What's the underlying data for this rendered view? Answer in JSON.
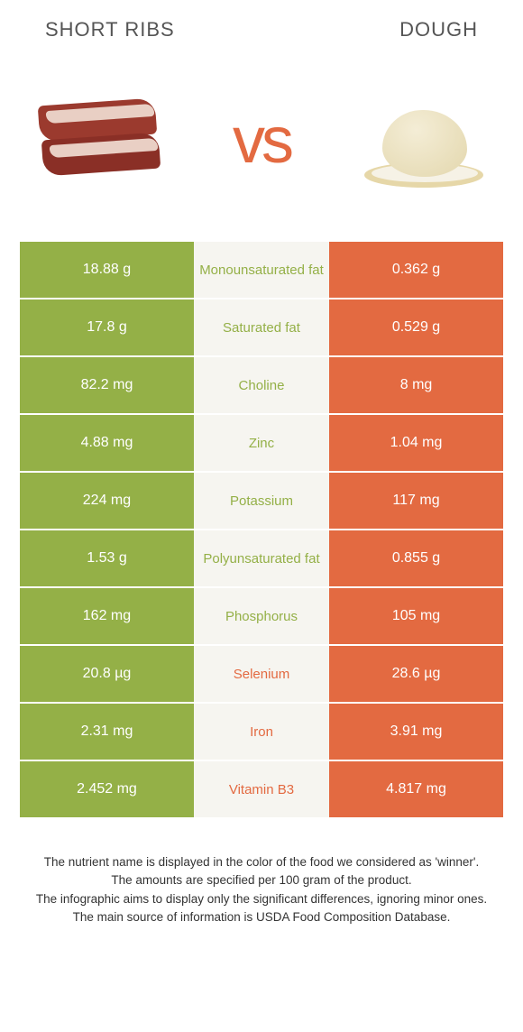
{
  "colors": {
    "green": "#94b047",
    "orange": "#e36a41",
    "vs": "#e36a41",
    "mid_bg": "#f6f5f0",
    "meat_red": "#9b3a2e",
    "meat_red2": "#8a2f26",
    "meat_fat": "#e9cfc4"
  },
  "header": {
    "left": "Short Ribs",
    "right": "Dough"
  },
  "vs_label": "vs",
  "rows": [
    {
      "left": "18.88 g",
      "nutrient": "Monounsaturated fat",
      "right": "0.362 g",
      "winner": "left"
    },
    {
      "left": "17.8 g",
      "nutrient": "Saturated fat",
      "right": "0.529 g",
      "winner": "left"
    },
    {
      "left": "82.2 mg",
      "nutrient": "Choline",
      "right": "8 mg",
      "winner": "left"
    },
    {
      "left": "4.88 mg",
      "nutrient": "Zinc",
      "right": "1.04 mg",
      "winner": "left"
    },
    {
      "left": "224 mg",
      "nutrient": "Potassium",
      "right": "117 mg",
      "winner": "left"
    },
    {
      "left": "1.53 g",
      "nutrient": "Polyunsaturated fat",
      "right": "0.855 g",
      "winner": "left"
    },
    {
      "left": "162 mg",
      "nutrient": "Phosphorus",
      "right": "105 mg",
      "winner": "left"
    },
    {
      "left": "20.8 µg",
      "nutrient": "Selenium",
      "right": "28.6 µg",
      "winner": "right"
    },
    {
      "left": "2.31 mg",
      "nutrient": "Iron",
      "right": "3.91 mg",
      "winner": "right"
    },
    {
      "left": "2.452 mg",
      "nutrient": "Vitamin B3",
      "right": "4.817 mg",
      "winner": "right"
    }
  ],
  "footer": {
    "line1": "The nutrient name is displayed in the color of the food we considered as 'winner'.",
    "line2": "The amounts are specified per 100 gram of the product.",
    "line3": "The infographic aims to display only the significant differences, ignoring minor ones.",
    "line4": "The main source of information is USDA Food Composition Database."
  }
}
